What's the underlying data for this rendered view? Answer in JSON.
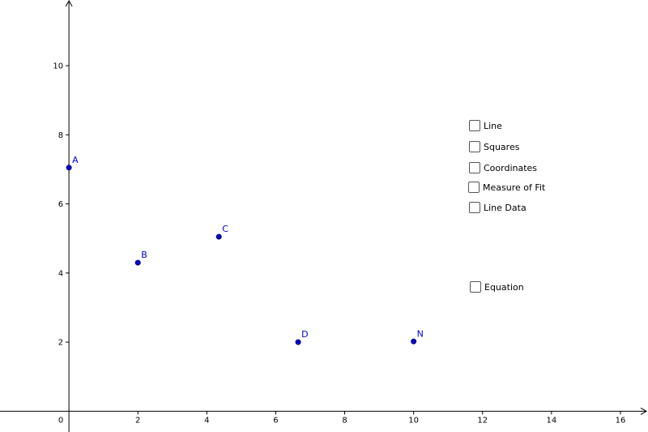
{
  "graph": {
    "x_ticks": [
      0,
      2,
      4,
      6,
      8,
      10,
      12,
      14,
      16
    ],
    "y_ticks": [
      2,
      4,
      6,
      8,
      10
    ],
    "xlim": [
      -2,
      16.8
    ],
    "ylim": [
      -0.6,
      11.9
    ],
    "points": [
      {
        "label": "A",
        "x": 0,
        "y": 7.05
      },
      {
        "label": "B",
        "x": 2,
        "y": 4.3
      },
      {
        "label": "C",
        "x": 4.35,
        "y": 5.05
      },
      {
        "label": "D",
        "x": 6.65,
        "y": 2
      },
      {
        "label": "N",
        "x": 10,
        "y": 2.02
      }
    ],
    "point_color": "#0000cc",
    "axis_color": "#000000"
  },
  "controls": {
    "line": {
      "label": "Line",
      "checked": false
    },
    "squares": {
      "label": "Squares",
      "checked": false
    },
    "coordinates": {
      "label": "Coordinates",
      "checked": false
    },
    "measure_of_fit": {
      "label": "Measure of Fit",
      "checked": false
    },
    "line_data": {
      "label": "Line Data",
      "checked": false
    },
    "equation": {
      "label": "Equation",
      "checked": false
    }
  }
}
